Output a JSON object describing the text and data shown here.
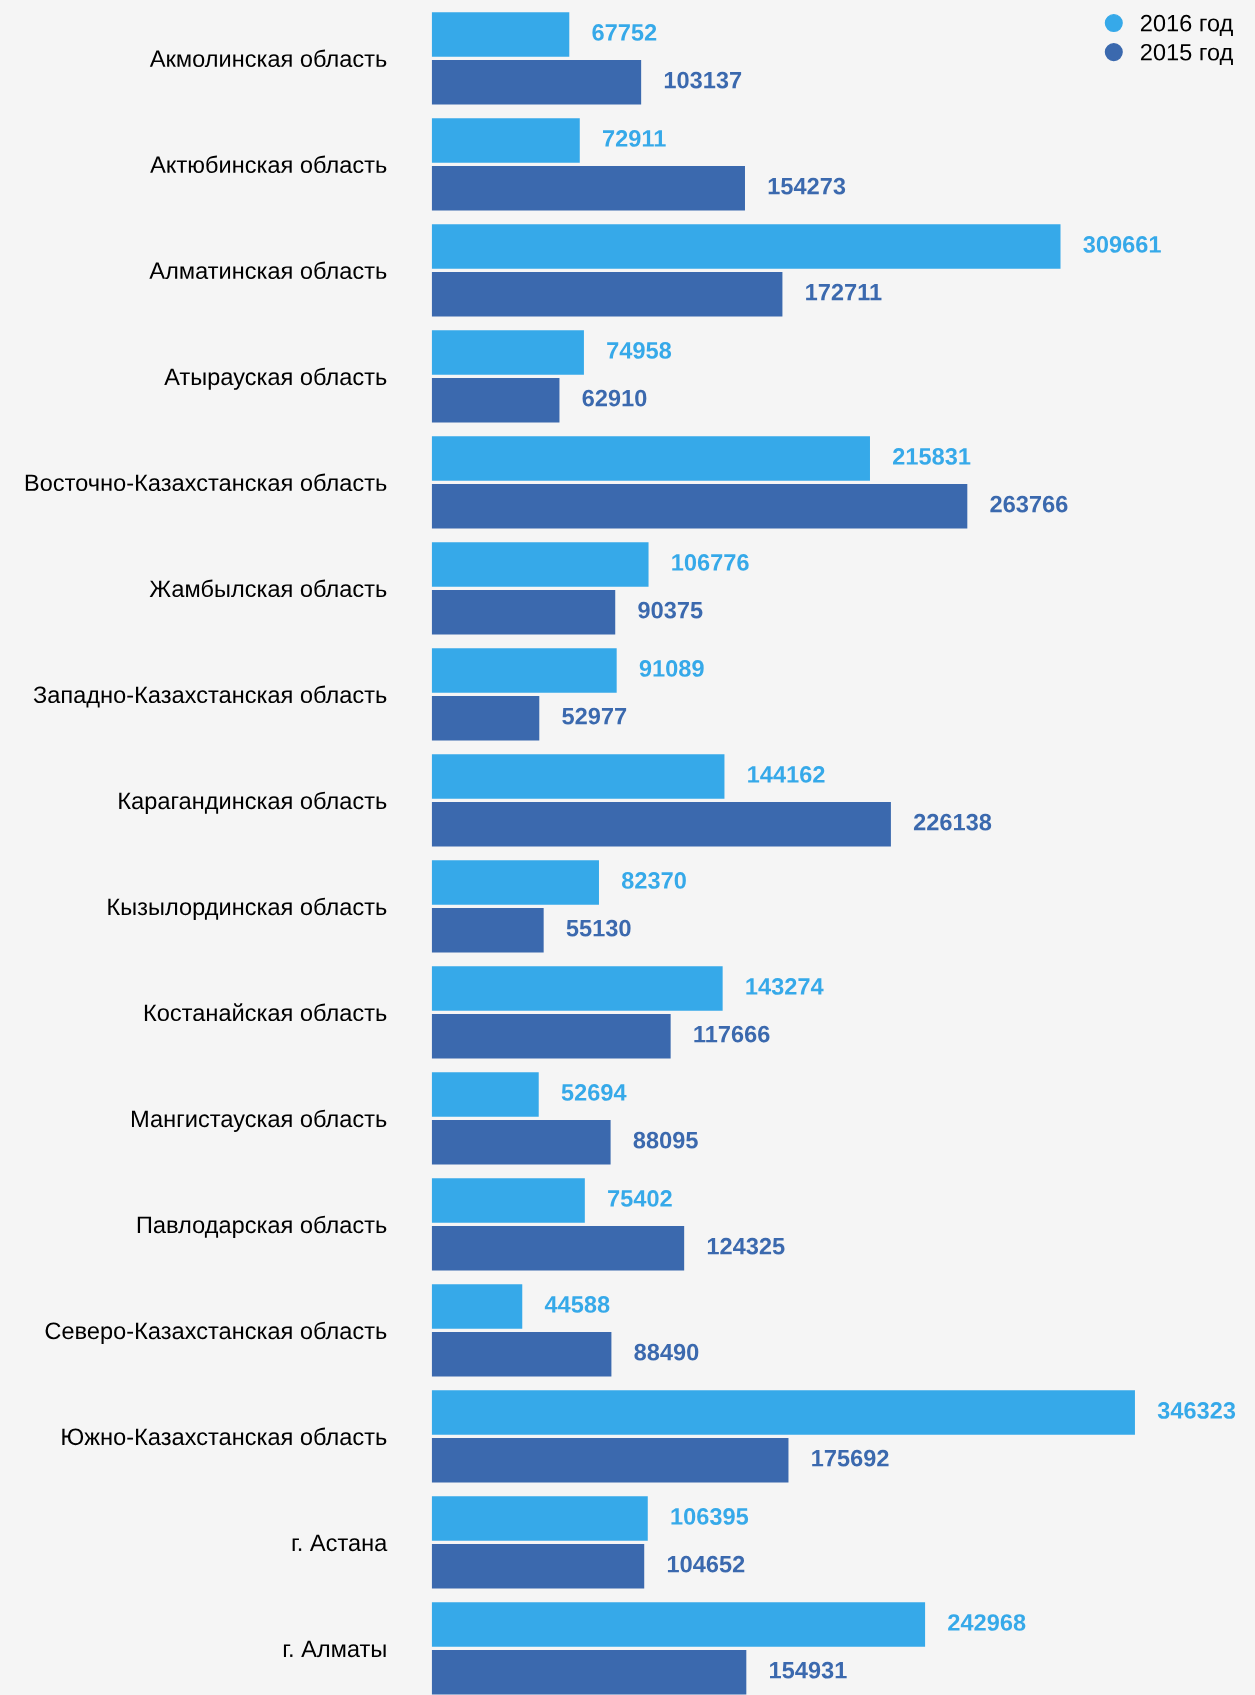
{
  "chart_data": {
    "type": "bar",
    "orientation": "horizontal",
    "data_labels": true,
    "legend": "top right",
    "grid": false,
    "marker": "circle",
    "categories": [
      "Акмолинская область",
      "Актюбинская область",
      "Алматинская область",
      "Атырауская область",
      "Восточно-Казахстанская область",
      "Жамбылская область",
      "Западно-Казахстанская область",
      "Карагандинская область",
      "Кызылординская область",
      "Костанайская область",
      "Мангистауская область",
      "Павлодарская область",
      "Северо-Казахстанская область",
      "Южно-Казахстанская область",
      "г. Астана",
      "г. Алматы"
    ],
    "series": [
      {
        "name": "2016 год",
        "color": "#36a9e9",
        "values": [
          67752,
          72911,
          309661,
          74958,
          215831,
          106776,
          91089,
          144162,
          82370,
          143274,
          52694,
          75402,
          44588,
          346323,
          106395,
          242968
        ]
      },
      {
        "name": "2015 год",
        "color": "#3b69ae",
        "values": [
          103137,
          154273,
          172711,
          62910,
          263766,
          90375,
          52977,
          226138,
          55130,
          117666,
          88095,
          124325,
          88490,
          175692,
          104652,
          154931
        ]
      }
    ]
  }
}
